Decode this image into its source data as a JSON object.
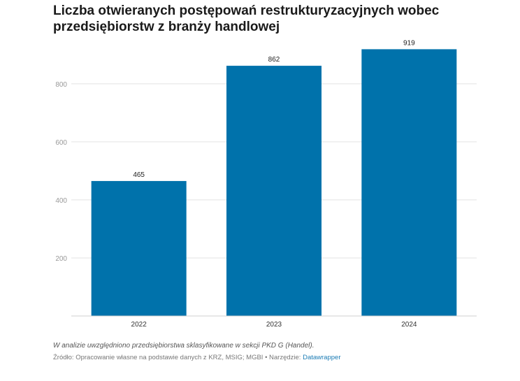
{
  "chart_data": {
    "type": "bar",
    "title": "Liczba otwieranych postępowań restrukturyzacyjnych wobec przedsiębiorstw z branży handlowej",
    "xlabel": "",
    "ylabel": "",
    "categories": [
      "2022",
      "2023",
      "2024"
    ],
    "values": [
      465,
      862,
      919
    ],
    "data_labels": [
      "465",
      "862",
      "919"
    ],
    "ylim": [
      0,
      920
    ],
    "yticks": [
      200,
      400,
      600,
      800
    ],
    "ytick_labels": [
      "200",
      "400",
      "600",
      "800"
    ],
    "grid": true,
    "legend": "none",
    "bar_color": "#0072ab"
  },
  "footer": {
    "note": "W analizie uwzględniono przedsiębiorstwa sklasyfikowane w sekcji PKD G (Handel).",
    "source_prefix": "Źródło: Opracowanie własne na podstawie danych z KRZ, MSIG; MGBI • Narzędzie: ",
    "tool_link": "Datawrapper"
  }
}
